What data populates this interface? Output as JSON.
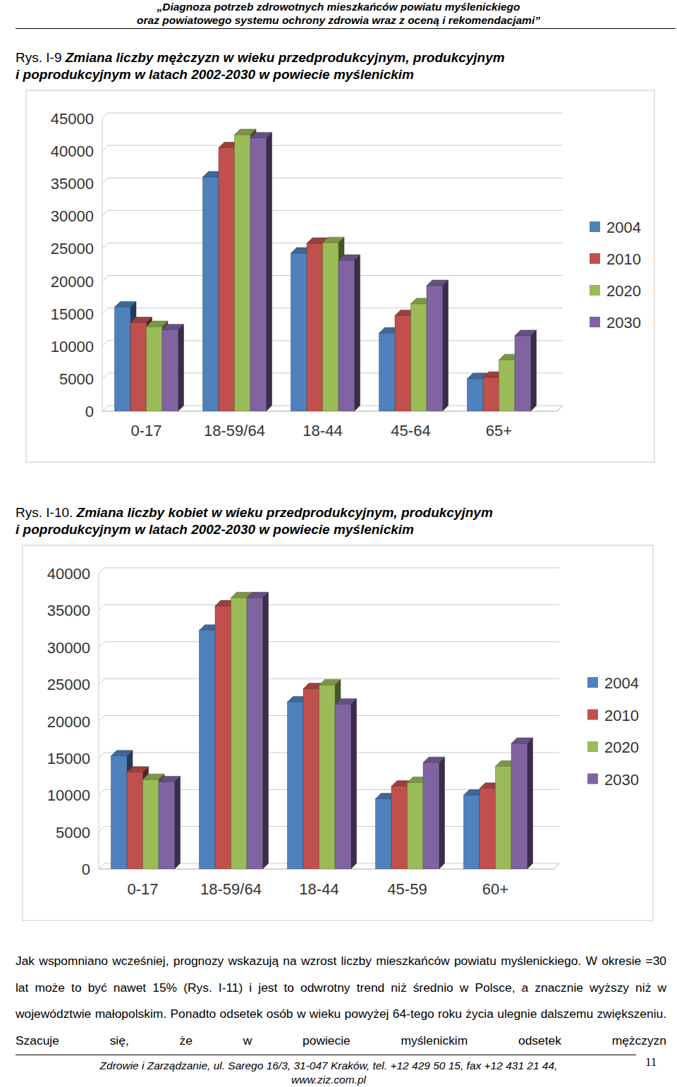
{
  "header": {
    "lines": [
      "„Diagnoza potrzeb zdrowotnych mieszkańców powiatu myślenickiego",
      "oraz powiatowego systemu ochrony zdrowia wraz z oceną i rekomendacjami”"
    ]
  },
  "chart_data": [
    {
      "type": "bar",
      "annotations": [
        "Rys. I-9"
      ],
      "title": [
        "Zmiana liczby mężczyzn w wieku przedprodukcyjnym, produkcyjnym",
        "i poprodukcyjnym w latach 2002-2030 w powiecie myślenickim"
      ],
      "categories": [
        "0-17",
        "18-59/64",
        "18-44",
        "45-64",
        "65+"
      ],
      "series": [
        {
          "name": "2004",
          "color": "#4f81bd",
          "values": [
            16000,
            36000,
            24300,
            12000,
            5000
          ]
        },
        {
          "name": "2010",
          "color": "#c0504d",
          "values": [
            13600,
            40500,
            25800,
            14700,
            5200
          ]
        },
        {
          "name": "2020",
          "color": "#9bbb59",
          "values": [
            13000,
            42500,
            25900,
            16500,
            7900
          ]
        },
        {
          "name": "2030",
          "color": "#8064a2",
          "values": [
            12500,
            42000,
            23200,
            19300,
            11600
          ]
        }
      ],
      "ylim": [
        0,
        45000
      ],
      "yticks": [
        0,
        5000,
        10000,
        15000,
        20000,
        25000,
        30000,
        35000,
        40000,
        45000
      ],
      "grid": true,
      "legend": "right"
    },
    {
      "type": "bar",
      "annotations": [
        "Rys. I-10."
      ],
      "title": [
        "Zmiana liczby kobiet w wieku przedprodukcyjnym, produkcyjnym",
        "i poprodukcyjnym w latach 2002-2030 w powiecie myślenickim"
      ],
      "categories": [
        "0-17",
        "18-59/64",
        "18-44",
        "45-59",
        "60+"
      ],
      "series": [
        {
          "name": "2004",
          "color": "#4f81bd",
          "values": [
            15300,
            32300,
            22600,
            9500,
            10000
          ]
        },
        {
          "name": "2010",
          "color": "#c0504d",
          "values": [
            13100,
            35600,
            24400,
            11200,
            10900
          ]
        },
        {
          "name": "2020",
          "color": "#9bbb59",
          "values": [
            12100,
            36700,
            24900,
            11700,
            13900
          ]
        },
        {
          "name": "2030",
          "color": "#8064a2",
          "values": [
            11800,
            36700,
            22300,
            14400,
            17000
          ]
        }
      ],
      "ylim": [
        0,
        40000
      ],
      "yticks": [
        0,
        5000,
        10000,
        15000,
        20000,
        25000,
        30000,
        35000,
        40000
      ],
      "grid": true,
      "legend": "right"
    }
  ],
  "paragraph": "Jak wspomniano wcześniej, prognozy wskazują na wzrost liczby mieszkańców powiatu myślenickiego. W okresie =30 lat może to być nawet 15% (Rys. I-11) i jest to odwrotny trend niż średnio w Polsce, a znacznie wyższy niż w województwie małopolskim. Ponadto odsetek osób w wieku powyżej 64-tego roku życia ulegnie dalszemu zwiększeniu. Szacuje się, że w powiecie myślenickim odsetek mężczyzn",
  "footer": {
    "text": "Zdrowie i Zarządzanie, ul. Sarego 16/3, 31-047 Kraków, tel. +12 429 50 15, fax +12 431 21 44,",
    "url": "www.ziz.com.pl",
    "page_number": "11"
  }
}
